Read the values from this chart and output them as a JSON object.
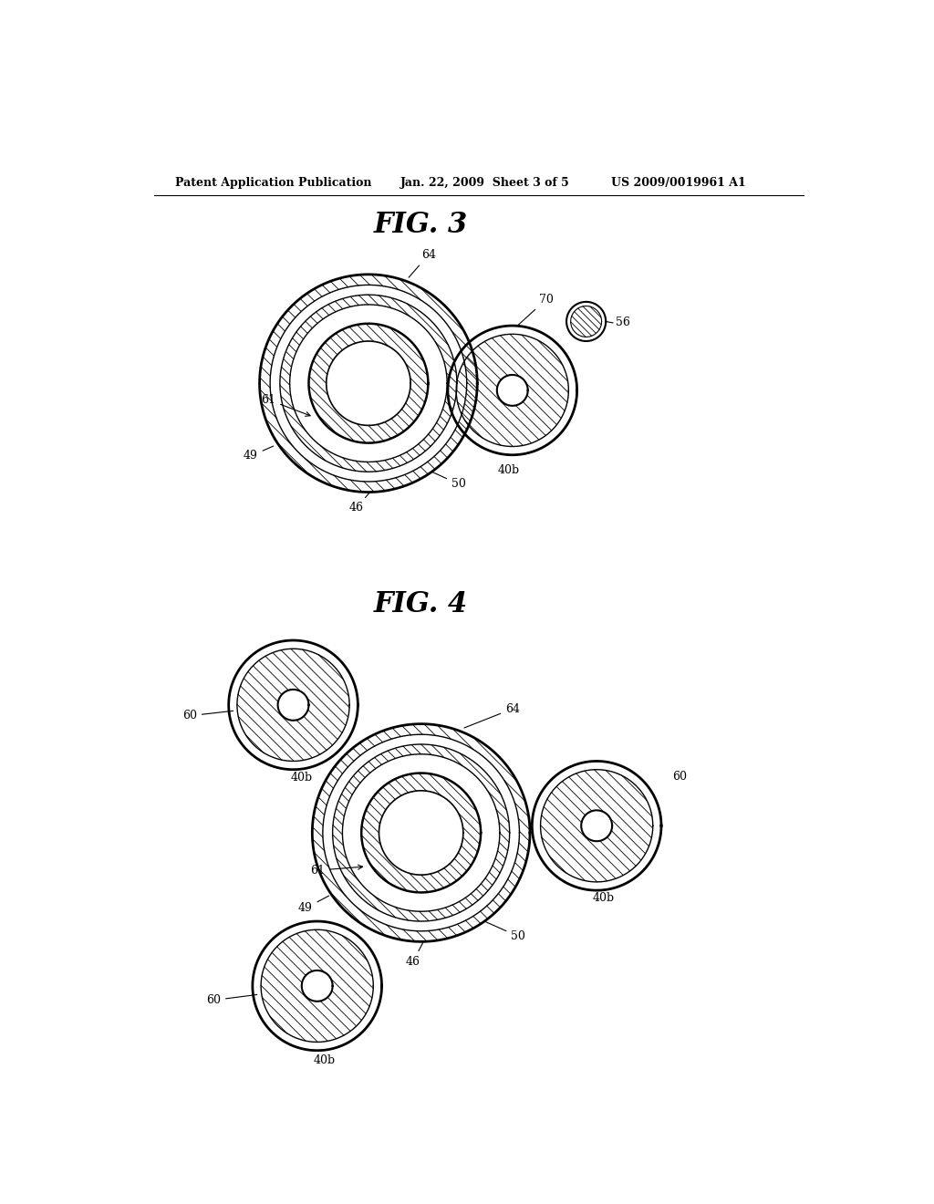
{
  "background_color": "#ffffff",
  "header_left": "Patent Application Publication",
  "header_center": "Jan. 22, 2009  Sheet 3 of 5",
  "header_right": "US 2009/0019961 A1",
  "fig3_title": "FIG. 3",
  "fig4_title": "FIG. 4"
}
